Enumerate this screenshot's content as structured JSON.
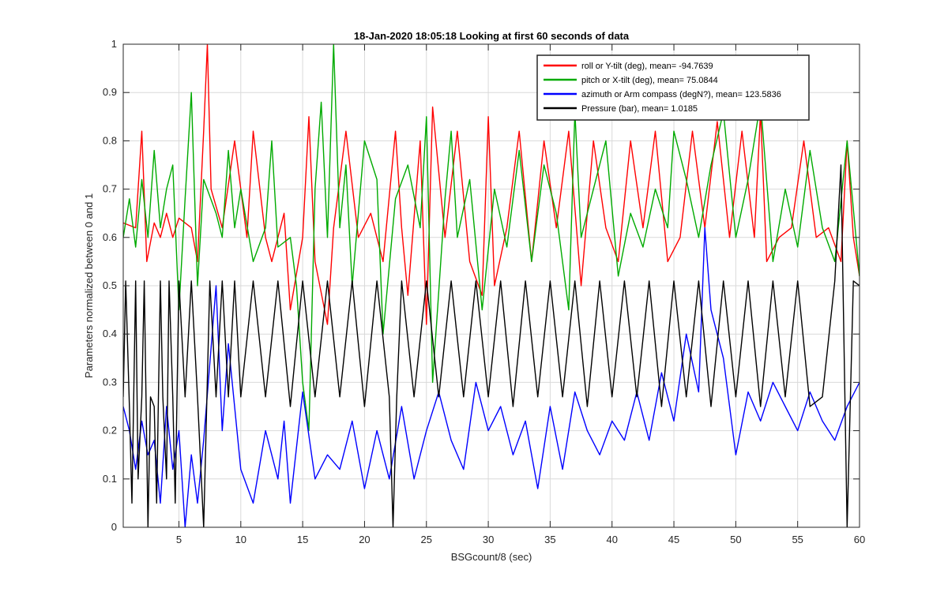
{
  "chart_data": {
    "type": "line",
    "title": "18-Jan-2020 18:05:18 Looking at first 60 seconds of data",
    "xlabel": "BSGcount/8 (sec)",
    "ylabel": "Parameters normalized between 0 and 1",
    "xlim": [
      0.5,
      60
    ],
    "ylim": [
      0,
      1
    ],
    "grid": true,
    "legend_position": "top-right",
    "x_ticks": [
      5,
      10,
      15,
      20,
      25,
      30,
      35,
      40,
      45,
      50,
      55,
      60
    ],
    "y_ticks": [
      0,
      0.1,
      0.2,
      0.3,
      0.4,
      0.5,
      0.6,
      0.7,
      0.8,
      0.9,
      1
    ],
    "x_tick_labels": [
      "5",
      "10",
      "15",
      "20",
      "25",
      "30",
      "35",
      "40",
      "45",
      "50",
      "55",
      "60"
    ],
    "y_tick_labels": [
      "0",
      "0.1",
      "0.2",
      "0.3",
      "0.4",
      "0.5",
      "0.6",
      "0.7",
      "0.8",
      "0.9",
      "1"
    ],
    "series": [
      {
        "name": "roll or Y-tilt (deg), mean= -94.7639",
        "color": "#ff0000",
        "x": [
          0.5,
          1.5,
          2.0,
          2.4,
          3.0,
          3.5,
          4.0,
          4.5,
          5.0,
          6.0,
          6.5,
          7.0,
          7.3,
          7.6,
          8.5,
          9.5,
          10.5,
          11.0,
          12.0,
          12.5,
          13.5,
          14.0,
          15.0,
          15.5,
          16.0,
          17.0,
          17.5,
          18.5,
          19.5,
          20.5,
          21.5,
          22.5,
          23.0,
          23.5,
          24.5,
          25.0,
          25.5,
          26.5,
          27.5,
          28.5,
          29.5,
          30.0,
          30.5,
          31.5,
          32.5,
          33.5,
          34.5,
          35.5,
          36.5,
          37.5,
          38.5,
          39.5,
          40.5,
          41.5,
          42.5,
          43.5,
          44.5,
          45.5,
          46.5,
          47.5,
          48.5,
          49.5,
          50.5,
          51.5,
          52.0,
          52.5,
          53.5,
          54.5,
          55.5,
          56.5,
          57.5,
          58.5,
          59.0,
          59.5,
          60.0
        ],
        "y": [
          0.63,
          0.62,
          0.82,
          0.55,
          0.63,
          0.6,
          0.65,
          0.6,
          0.64,
          0.62,
          0.55,
          0.82,
          1.0,
          0.7,
          0.62,
          0.8,
          0.6,
          0.82,
          0.6,
          0.55,
          0.65,
          0.45,
          0.6,
          0.85,
          0.55,
          0.42,
          0.62,
          0.82,
          0.6,
          0.65,
          0.55,
          0.82,
          0.62,
          0.48,
          0.8,
          0.42,
          0.87,
          0.6,
          0.82,
          0.55,
          0.48,
          0.85,
          0.5,
          0.62,
          0.82,
          0.55,
          0.8,
          0.62,
          0.82,
          0.5,
          0.8,
          0.62,
          0.55,
          0.8,
          0.62,
          0.82,
          0.55,
          0.6,
          0.82,
          0.62,
          0.84,
          0.6,
          0.82,
          0.6,
          0.86,
          0.55,
          0.6,
          0.62,
          0.8,
          0.6,
          0.62,
          0.55,
          0.8,
          0.6,
          0.52
        ]
      },
      {
        "name": "pitch or X-tilt (deg), mean= 75.0844",
        "color": "#00aa00",
        "x": [
          0.5,
          1.0,
          1.5,
          2.0,
          2.5,
          3.0,
          3.5,
          4.0,
          4.5,
          5.0,
          5.5,
          6.0,
          6.5,
          7.0,
          8.0,
          8.5,
          9.0,
          9.5,
          10.0,
          11.0,
          12.0,
          12.5,
          13.0,
          14.0,
          14.5,
          15.0,
          15.5,
          16.0,
          16.5,
          17.0,
          17.5,
          18.0,
          18.5,
          19.0,
          20.0,
          21.0,
          21.5,
          22.5,
          23.5,
          24.5,
          25.0,
          25.5,
          26.5,
          27.0,
          27.5,
          28.5,
          29.5,
          30.5,
          31.5,
          32.5,
          33.5,
          34.5,
          35.5,
          36.5,
          37.0,
          37.5,
          38.5,
          39.5,
          40.5,
          41.5,
          42.5,
          43.5,
          44.5,
          45.0,
          46.0,
          47.0,
          48.0,
          49.0,
          50.0,
          51.0,
          52.0,
          53.0,
          54.0,
          55.0,
          56.0,
          57.0,
          58.0,
          59.0,
          60.0
        ],
        "y": [
          0.6,
          0.68,
          0.58,
          0.72,
          0.6,
          0.78,
          0.62,
          0.7,
          0.75,
          0.45,
          0.68,
          0.9,
          0.5,
          0.72,
          0.65,
          0.6,
          0.78,
          0.62,
          0.7,
          0.55,
          0.62,
          0.8,
          0.58,
          0.6,
          0.5,
          0.3,
          0.2,
          0.7,
          0.88,
          0.6,
          1.0,
          0.62,
          0.75,
          0.5,
          0.8,
          0.72,
          0.4,
          0.68,
          0.75,
          0.62,
          0.85,
          0.3,
          0.68,
          0.82,
          0.6,
          0.72,
          0.45,
          0.7,
          0.58,
          0.78,
          0.55,
          0.75,
          0.65,
          0.45,
          0.86,
          0.6,
          0.7,
          0.8,
          0.52,
          0.65,
          0.58,
          0.7,
          0.62,
          0.82,
          0.72,
          0.6,
          0.75,
          0.86,
          0.6,
          0.72,
          0.88,
          0.55,
          0.7,
          0.58,
          0.78,
          0.62,
          0.55,
          0.8,
          0.52
        ]
      },
      {
        "name": "azimuth or Arm compass (degN?), mean= 123.5836",
        "color": "#0000ff",
        "x": [
          0.5,
          1.0,
          1.5,
          2.0,
          2.5,
          3.0,
          3.5,
          4.0,
          4.5,
          5.0,
          5.5,
          6.0,
          6.5,
          7.0,
          8.0,
          8.5,
          9.0,
          10.0,
          11.0,
          12.0,
          13.0,
          13.5,
          14.0,
          15.0,
          16.0,
          17.0,
          18.0,
          19.0,
          20.0,
          21.0,
          22.0,
          23.0,
          24.0,
          25.0,
          26.0,
          27.0,
          28.0,
          29.0,
          30.0,
          31.0,
          32.0,
          33.0,
          34.0,
          35.0,
          36.0,
          37.0,
          38.0,
          39.0,
          40.0,
          41.0,
          42.0,
          43.0,
          44.0,
          45.0,
          46.0,
          47.0,
          47.5,
          48.0,
          49.0,
          50.0,
          51.0,
          52.0,
          53.0,
          54.0,
          55.0,
          56.0,
          57.0,
          58.0,
          59.0,
          60.0
        ],
        "y": [
          0.25,
          0.2,
          0.12,
          0.22,
          0.15,
          0.18,
          0.05,
          0.25,
          0.12,
          0.2,
          0.0,
          0.15,
          0.05,
          0.18,
          0.5,
          0.2,
          0.38,
          0.12,
          0.05,
          0.2,
          0.1,
          0.22,
          0.05,
          0.28,
          0.1,
          0.15,
          0.12,
          0.22,
          0.08,
          0.2,
          0.1,
          0.25,
          0.1,
          0.2,
          0.28,
          0.18,
          0.12,
          0.3,
          0.2,
          0.25,
          0.15,
          0.22,
          0.08,
          0.25,
          0.12,
          0.28,
          0.2,
          0.15,
          0.22,
          0.18,
          0.28,
          0.18,
          0.32,
          0.22,
          0.4,
          0.28,
          0.62,
          0.45,
          0.35,
          0.15,
          0.28,
          0.22,
          0.3,
          0.25,
          0.2,
          0.28,
          0.22,
          0.18,
          0.25,
          0.3
        ]
      },
      {
        "name": "Pressure (bar), mean= 1.0185",
        "color": "#000000",
        "x": [
          0.5,
          0.7,
          1.0,
          1.2,
          1.5,
          1.7,
          2.0,
          2.2,
          2.5,
          2.7,
          3.0,
          3.2,
          3.5,
          3.7,
          4.0,
          4.2,
          4.5,
          4.7,
          5.0,
          5.5,
          6.0,
          6.5,
          7.0,
          7.5,
          8.0,
          8.5,
          9.0,
          9.5,
          10.0,
          11.0,
          12.0,
          13.0,
          14.0,
          15.0,
          16.0,
          17.0,
          18.0,
          19.0,
          20.0,
          21.0,
          22.0,
          22.3,
          22.6,
          23.0,
          24.0,
          25.0,
          26.0,
          27.0,
          28.0,
          29.0,
          30.0,
          31.0,
          32.0,
          33.0,
          34.0,
          35.0,
          36.0,
          37.0,
          38.0,
          39.0,
          40.0,
          41.0,
          42.0,
          43.0,
          44.0,
          45.0,
          46.0,
          47.0,
          48.0,
          49.0,
          50.0,
          51.0,
          52.0,
          53.0,
          54.0,
          55.0,
          56.0,
          57.0,
          58.0,
          58.5,
          59.0,
          59.5,
          60.0
        ],
        "y": [
          0.27,
          0.51,
          0.25,
          0.05,
          0.51,
          0.1,
          0.27,
          0.51,
          0.0,
          0.27,
          0.25,
          0.05,
          0.51,
          0.27,
          0.1,
          0.51,
          0.27,
          0.05,
          0.51,
          0.27,
          0.51,
          0.27,
          0.0,
          0.51,
          0.27,
          0.51,
          0.27,
          0.51,
          0.27,
          0.51,
          0.27,
          0.51,
          0.25,
          0.51,
          0.27,
          0.51,
          0.27,
          0.51,
          0.25,
          0.51,
          0.27,
          0.0,
          0.27,
          0.51,
          0.27,
          0.51,
          0.27,
          0.51,
          0.27,
          0.51,
          0.27,
          0.51,
          0.25,
          0.51,
          0.27,
          0.51,
          0.27,
          0.51,
          0.25,
          0.51,
          0.27,
          0.51,
          0.27,
          0.51,
          0.25,
          0.51,
          0.27,
          0.51,
          0.25,
          0.51,
          0.27,
          0.51,
          0.25,
          0.51,
          0.27,
          0.51,
          0.25,
          0.27,
          0.51,
          0.75,
          0.0,
          0.51,
          0.5
        ]
      }
    ]
  }
}
